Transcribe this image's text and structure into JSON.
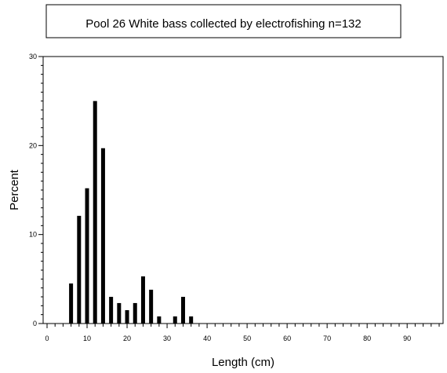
{
  "chart_data": {
    "type": "bar",
    "title": "Pool 26 White bass collected by electrofishing n=132",
    "xlabel": "Length (cm)",
    "ylabel": "Percent",
    "xlim": [
      0,
      98
    ],
    "ylim": [
      0,
      30
    ],
    "x_ticks": [
      "0",
      "10",
      "20",
      "30",
      "40",
      "50",
      "60",
      "70",
      "80",
      "90"
    ],
    "y_ticks": [
      "0",
      "10",
      "20",
      "30"
    ],
    "grid": false,
    "x": [
      6,
      8,
      10,
      12,
      14,
      16,
      18,
      20,
      22,
      24,
      26,
      28,
      32,
      34,
      36
    ],
    "values": [
      4.5,
      12.1,
      15.2,
      25.0,
      19.7,
      3.0,
      2.3,
      1.5,
      2.3,
      5.3,
      3.8,
      0.8,
      0.8,
      3.0,
      0.8
    ]
  }
}
